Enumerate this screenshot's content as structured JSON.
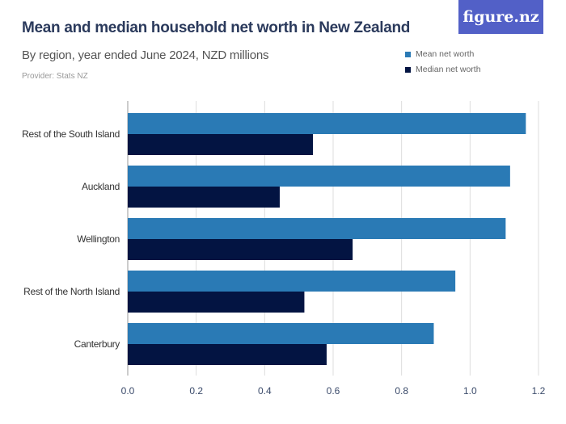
{
  "chart_data": {
    "type": "bar",
    "orientation": "horizontal",
    "title": "Mean and median household net worth in New Zealand",
    "subtitle": "By region, year ended June 2024, NZD millions",
    "provider": "Provider: Stats NZ",
    "categories": [
      "Rest of the South Island",
      "Auckland",
      "Wellington",
      "Rest of the North Island",
      "Canterbury"
    ],
    "series": [
      {
        "name": "Mean net worth",
        "color": "#2a7ab5",
        "values": [
          1.163,
          1.117,
          1.104,
          0.957,
          0.894
        ]
      },
      {
        "name": "Median net worth",
        "color": "#031442",
        "values": [
          0.541,
          0.444,
          0.657,
          0.516,
          0.581
        ]
      }
    ],
    "xlim": [
      0,
      1.2
    ],
    "xticks": [
      "0.0",
      "0.2",
      "0.4",
      "0.6",
      "0.8",
      "1.0",
      "1.2"
    ],
    "grid": true,
    "legend": "top-right"
  },
  "logo": "figure.nz"
}
